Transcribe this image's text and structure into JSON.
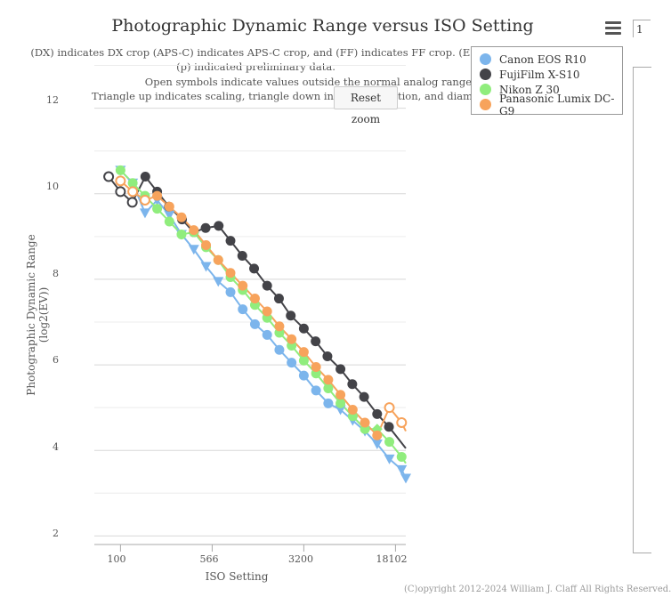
{
  "chart_data": {
    "type": "line",
    "title": "Photographic Dynamic Range versus ISO Setting",
    "subtitle_lines": [
      "(DX) indicates DX crop (APS-C) indicates APS-C crop, and (FF) indicates FF crop. (ES)",
      "(p) indicated preliminary data.",
      "Open symbols indicate values outside the normal analog range",
      "Triangle up indicates scaling, triangle down indicat",
      "tion, and diamo"
    ],
    "xlabel": "ISO Setting",
    "ylabel": "Photographic Dynamic Range (log2(EV))",
    "x_scale": "log",
    "xlim": [
      61,
      22000
    ],
    "ylim": [
      1.8,
      12.2
    ],
    "x_ticks": [
      "100",
      "566",
      "3200",
      "18102"
    ],
    "x_tick_values": [
      100,
      566,
      3200,
      18102
    ],
    "y_ticks": [
      "2",
      "4",
      "6",
      "8",
      "10",
      "12"
    ],
    "y_tick_values": [
      2,
      4,
      6,
      8,
      10,
      12
    ],
    "series": [
      {
        "name": "Canon EOS R10",
        "color": "#7cb5ec",
        "points": [
          {
            "iso": 100,
            "v": 10.55,
            "m": "tri-down"
          },
          {
            "iso": 126,
            "v": 10.25,
            "m": "tri-down"
          },
          {
            "iso": 159,
            "v": 9.55,
            "m": "tri-down"
          },
          {
            "iso": 200,
            "v": 9.85,
            "m": "tri-down"
          },
          {
            "iso": 252,
            "v": 9.5,
            "m": "tri-down"
          },
          {
            "iso": 317,
            "v": 9.05,
            "m": "tri-down"
          },
          {
            "iso": 400,
            "v": 8.7,
            "m": "tri-down"
          },
          {
            "iso": 504,
            "v": 8.3,
            "m": "tri-down"
          },
          {
            "iso": 635,
            "v": 7.95,
            "m": "tri-down"
          },
          {
            "iso": 800,
            "v": 7.7,
            "m": "circle"
          },
          {
            "iso": 1008,
            "v": 7.3,
            "m": "circle"
          },
          {
            "iso": 1270,
            "v": 6.95,
            "m": "circle"
          },
          {
            "iso": 1600,
            "v": 6.7,
            "m": "circle"
          },
          {
            "iso": 2016,
            "v": 6.35,
            "m": "circle"
          },
          {
            "iso": 2540,
            "v": 6.05,
            "m": "circle"
          },
          {
            "iso": 3200,
            "v": 5.75,
            "m": "circle"
          },
          {
            "iso": 4032,
            "v": 5.4,
            "m": "circle"
          },
          {
            "iso": 5080,
            "v": 5.1,
            "m": "circle"
          },
          {
            "iso": 6400,
            "v": 4.95,
            "m": "tri-down"
          },
          {
            "iso": 8064,
            "v": 4.7,
            "m": "tri-down"
          },
          {
            "iso": 10159,
            "v": 4.45,
            "m": "tri-down"
          },
          {
            "iso": 12800,
            "v": 4.15,
            "m": "tri-down"
          },
          {
            "iso": 16127,
            "v": 3.8,
            "m": "tri-down"
          },
          {
            "iso": 20319,
            "v": 3.55,
            "m": "tri-down"
          },
          {
            "iso": 22000,
            "v": 3.35,
            "m": "tri-down"
          }
        ]
      },
      {
        "name": "FujiFilm X-S10",
        "color": "#434348",
        "points": [
          {
            "iso": 80,
            "v": 10.4,
            "m": "open"
          },
          {
            "iso": 100,
            "v": 10.05,
            "m": "open"
          },
          {
            "iso": 125,
            "v": 9.8,
            "m": "open"
          },
          {
            "iso": 160,
            "v": 10.4,
            "m": "circle"
          },
          {
            "iso": 200,
            "v": 10.05,
            "m": "circle"
          },
          {
            "iso": 250,
            "v": 9.7,
            "m": "circle"
          },
          {
            "iso": 320,
            "v": 9.4,
            "m": "circle"
          },
          {
            "iso": 400,
            "v": 9.1,
            "m": "circle"
          },
          {
            "iso": 500,
            "v": 9.2,
            "m": "circle"
          },
          {
            "iso": 640,
            "v": 9.25,
            "m": "circle"
          },
          {
            "iso": 800,
            "v": 8.9,
            "m": "circle"
          },
          {
            "iso": 1000,
            "v": 8.55,
            "m": "circle"
          },
          {
            "iso": 1250,
            "v": 8.25,
            "m": "circle"
          },
          {
            "iso": 1600,
            "v": 7.85,
            "m": "circle"
          },
          {
            "iso": 2000,
            "v": 7.55,
            "m": "circle"
          },
          {
            "iso": 2500,
            "v": 7.15,
            "m": "circle"
          },
          {
            "iso": 3200,
            "v": 6.85,
            "m": "circle"
          },
          {
            "iso": 4000,
            "v": 6.55,
            "m": "circle"
          },
          {
            "iso": 5000,
            "v": 6.2,
            "m": "circle"
          },
          {
            "iso": 6400,
            "v": 5.9,
            "m": "circle"
          },
          {
            "iso": 8000,
            "v": 5.55,
            "m": "circle"
          },
          {
            "iso": 10000,
            "v": 5.25,
            "m": "circle"
          },
          {
            "iso": 12800,
            "v": 4.85,
            "m": "circle"
          },
          {
            "iso": 16000,
            "v": 4.55,
            "m": "circle"
          },
          {
            "iso": 20000,
            "v": 4.2,
            "m": "line"
          },
          {
            "iso": 22000,
            "v": 4.05,
            "m": "line"
          }
        ]
      },
      {
        "name": "Nikon Z 30",
        "color": "#90ed7d",
        "points": [
          {
            "iso": 100,
            "v": 10.55,
            "m": "circle"
          },
          {
            "iso": 126,
            "v": 10.25,
            "m": "circle"
          },
          {
            "iso": 159,
            "v": 9.95,
            "m": "circle"
          },
          {
            "iso": 200,
            "v": 9.65,
            "m": "circle"
          },
          {
            "iso": 252,
            "v": 9.35,
            "m": "circle"
          },
          {
            "iso": 317,
            "v": 9.05,
            "m": "circle"
          },
          {
            "iso": 400,
            "v": 9.1,
            "m": "circle"
          },
          {
            "iso": 504,
            "v": 8.75,
            "m": "circle"
          },
          {
            "iso": 635,
            "v": 8.45,
            "m": "circle"
          },
          {
            "iso": 800,
            "v": 8.05,
            "m": "circle"
          },
          {
            "iso": 1008,
            "v": 7.75,
            "m": "circle"
          },
          {
            "iso": 1270,
            "v": 7.4,
            "m": "circle"
          },
          {
            "iso": 1600,
            "v": 7.1,
            "m": "circle"
          },
          {
            "iso": 2016,
            "v": 6.75,
            "m": "circle"
          },
          {
            "iso": 2540,
            "v": 6.45,
            "m": "circle"
          },
          {
            "iso": 3200,
            "v": 6.1,
            "m": "circle"
          },
          {
            "iso": 4032,
            "v": 5.8,
            "m": "circle"
          },
          {
            "iso": 5080,
            "v": 5.45,
            "m": "circle"
          },
          {
            "iso": 6400,
            "v": 5.1,
            "m": "circle"
          },
          {
            "iso": 8064,
            "v": 4.8,
            "m": "circle"
          },
          {
            "iso": 10159,
            "v": 4.5,
            "m": "circle"
          },
          {
            "iso": 12800,
            "v": 4.5,
            "m": "diamond"
          },
          {
            "iso": 16127,
            "v": 4.2,
            "m": "circle"
          },
          {
            "iso": 20319,
            "v": 3.85,
            "m": "circle"
          },
          {
            "iso": 22000,
            "v": 3.7,
            "m": "line"
          }
        ]
      },
      {
        "name": "Panasonic Lumix DC-G9",
        "color": "#f7a35c",
        "points": [
          {
            "iso": 100,
            "v": 10.3,
            "m": "open"
          },
          {
            "iso": 126,
            "v": 10.05,
            "m": "open"
          },
          {
            "iso": 159,
            "v": 9.85,
            "m": "open"
          },
          {
            "iso": 200,
            "v": 9.95,
            "m": "circle"
          },
          {
            "iso": 252,
            "v": 9.7,
            "m": "circle"
          },
          {
            "iso": 317,
            "v": 9.45,
            "m": "circle"
          },
          {
            "iso": 400,
            "v": 9.15,
            "m": "circle"
          },
          {
            "iso": 504,
            "v": 8.8,
            "m": "circle"
          },
          {
            "iso": 635,
            "v": 8.45,
            "m": "circle"
          },
          {
            "iso": 800,
            "v": 8.15,
            "m": "circle"
          },
          {
            "iso": 1008,
            "v": 7.85,
            "m": "circle"
          },
          {
            "iso": 1270,
            "v": 7.55,
            "m": "circle"
          },
          {
            "iso": 1600,
            "v": 7.25,
            "m": "circle"
          },
          {
            "iso": 2016,
            "v": 6.9,
            "m": "circle"
          },
          {
            "iso": 2540,
            "v": 6.6,
            "m": "circle"
          },
          {
            "iso": 3200,
            "v": 6.3,
            "m": "circle"
          },
          {
            "iso": 4032,
            "v": 5.95,
            "m": "circle"
          },
          {
            "iso": 5080,
            "v": 5.65,
            "m": "circle"
          },
          {
            "iso": 6400,
            "v": 5.3,
            "m": "circle"
          },
          {
            "iso": 8064,
            "v": 4.95,
            "m": "circle"
          },
          {
            "iso": 10159,
            "v": 4.65,
            "m": "circle"
          },
          {
            "iso": 12800,
            "v": 4.35,
            "m": "circle"
          },
          {
            "iso": 16127,
            "v": 5.0,
            "m": "open"
          },
          {
            "iso": 20319,
            "v": 4.65,
            "m": "open"
          },
          {
            "iso": 22000,
            "v": 4.45,
            "m": "line"
          }
        ]
      }
    ]
  },
  "ui": {
    "reset_zoom_label": "Reset zoom",
    "credits": "(C)opyright 2012-2024 William J. Claff All Rights Reserved.",
    "side_panel_text": "1",
    "menu_icon": "hamburger-icon"
  }
}
